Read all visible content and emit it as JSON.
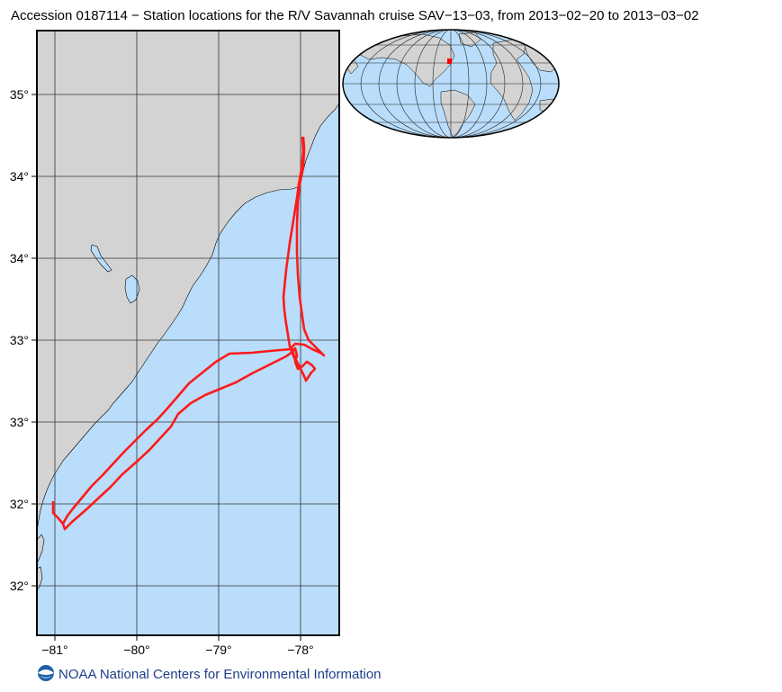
{
  "title": "Accession 0187114 − Station locations for the R/V Savannah cruise SAV−13−03, from 2013−02−20 to 2013−03−02",
  "map": {
    "x_ticks": [
      "−81°",
      "−80°",
      "−79°",
      "−78°"
    ],
    "y_ticks": [
      "35°",
      "34°",
      "34°",
      "33°",
      "33°",
      "32°",
      "32°"
    ],
    "colors": {
      "ocean": "#b9ddfa",
      "land": "#d3d3d3",
      "track": "#ff1a1a",
      "grid": "#333333",
      "frame": "#000000"
    }
  },
  "inset": {
    "colors": {
      "ocean": "#b9ddfa",
      "land": "#d3d3d3",
      "marker": "#ff0000"
    }
  },
  "footer": {
    "credit": "NOAA National Centers for Environmental Information",
    "logo": "noaa-logo-icon"
  }
}
